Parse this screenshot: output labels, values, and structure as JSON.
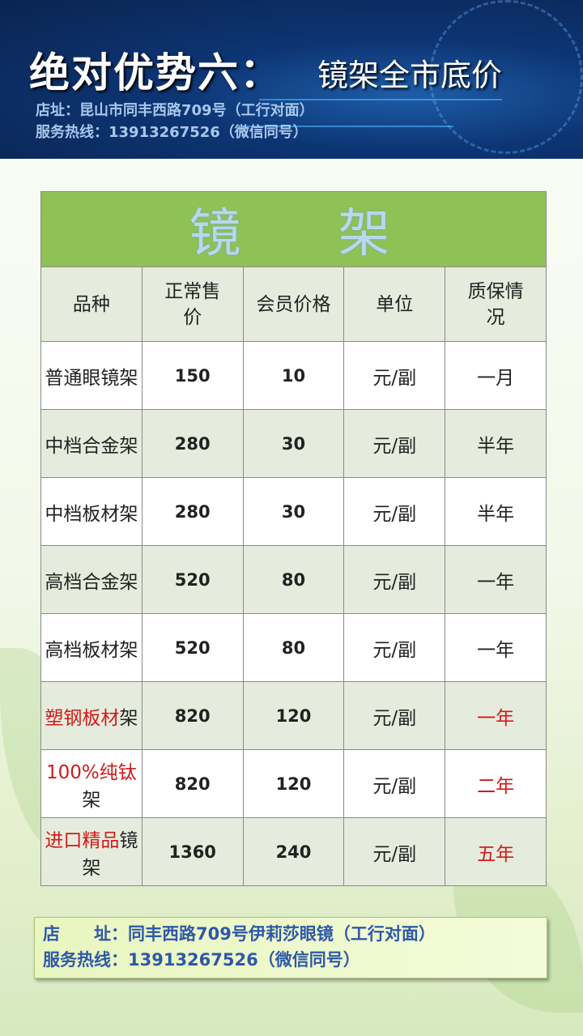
{
  "banner": {
    "title": "绝对优势六：",
    "subtitle": "镜架全市底价",
    "address": "店址：昆山市同丰西路709号（工行对面）",
    "hotline": "服务热线：13913267526（微信同号）"
  },
  "table": {
    "caption": "镜架",
    "headers": [
      "品种",
      "正常售价",
      "会员价格",
      "单位",
      "质保情况"
    ],
    "rows": [
      {
        "name": "普通眼镜架",
        "name_red": "",
        "name_rest": "普通眼镜架",
        "price": "150",
        "member": "10",
        "unit": "元/副",
        "warranty": "一月",
        "warranty_red": false
      },
      {
        "name": "中档合金架",
        "name_red": "",
        "name_rest": "中档合金架",
        "price": "280",
        "member": "30",
        "unit": "元/副",
        "warranty": "半年",
        "warranty_red": false
      },
      {
        "name": "中档板材架",
        "name_red": "",
        "name_rest": "中档板材架",
        "price": "280",
        "member": "30",
        "unit": "元/副",
        "warranty": "半年",
        "warranty_red": false
      },
      {
        "name": "高档合金架",
        "name_red": "",
        "name_rest": "高档合金架",
        "price": "520",
        "member": "80",
        "unit": "元/副",
        "warranty": "一年",
        "warranty_red": false
      },
      {
        "name": "高档板材架",
        "name_red": "",
        "name_rest": "高档板材架",
        "price": "520",
        "member": "80",
        "unit": "元/副",
        "warranty": "一年",
        "warranty_red": false
      },
      {
        "name": "塑钢板材架",
        "name_red": "塑钢板材",
        "name_rest": "架",
        "price": "820",
        "member": "120",
        "unit": "元/副",
        "warranty": "一年",
        "warranty_red": true
      },
      {
        "name": "100%纯钛架",
        "name_red": "100%纯钛",
        "name_rest": "架",
        "price": "820",
        "member": "120",
        "unit": "元/副",
        "warranty": "二年",
        "warranty_red": true
      },
      {
        "name": "进口精品镜架",
        "name_red": "进口精品",
        "name_rest": "镜架",
        "price": "1360",
        "member": "240",
        "unit": "元/副",
        "warranty": "五年",
        "warranty_red": true
      }
    ]
  },
  "footer": {
    "address_label": "店　　址：",
    "address": "同丰西路709号伊莉莎眼镜（工行对面）",
    "hotline_label": "服务热线：",
    "hotline": "13913267526（微信同号）"
  },
  "colors": {
    "header_green": "#8fc255",
    "accent_red": "#d21a1a",
    "footer_text": "#2e58a8"
  }
}
